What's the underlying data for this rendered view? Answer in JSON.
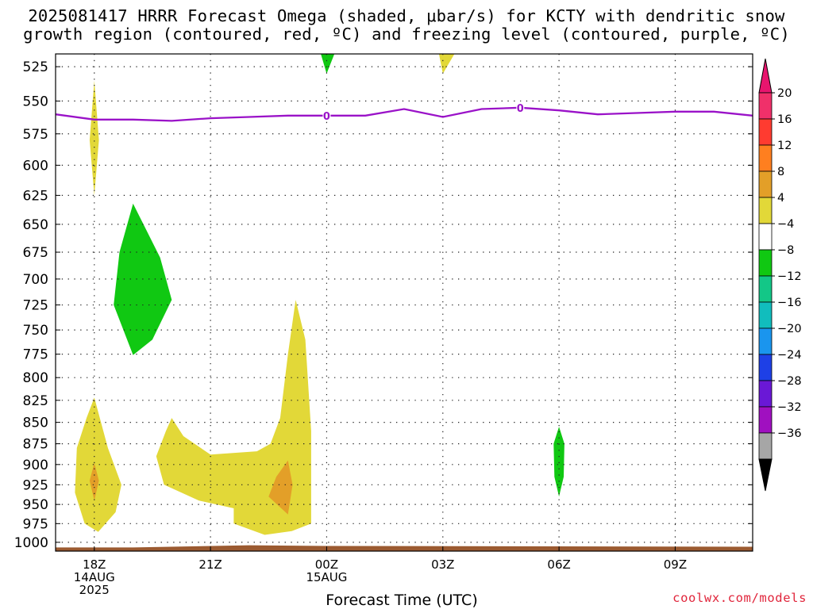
{
  "title_line1": "2025081417 HRRR Forecast Omega (shaded, μbar/s) for KCTY with dendritic snow",
  "title_line2": "growth region (contoured, red, ºC) and freezing level (contoured, purple, ºC)",
  "credit": "coolwx.com/models",
  "chart_data": {
    "type": "heatmap",
    "xlabel": "Forecast Time (UTC)",
    "ylabel": "",
    "x_ticks": [
      {
        "hour": 0,
        "lines": [
          "18Z",
          "14AUG",
          "2025"
        ]
      },
      {
        "hour": 3,
        "lines": [
          "21Z"
        ]
      },
      {
        "hour": 6,
        "lines": [
          "00Z",
          "15AUG"
        ]
      },
      {
        "hour": 9,
        "lines": [
          "03Z"
        ]
      },
      {
        "hour": 12,
        "lines": [
          "06Z"
        ]
      },
      {
        "hour": 15,
        "lines": [
          "09Z"
        ]
      }
    ],
    "xlim": [
      -1,
      17
    ],
    "y_ticks": [
      525,
      550,
      575,
      600,
      625,
      650,
      675,
      700,
      725,
      750,
      775,
      800,
      825,
      850,
      875,
      900,
      925,
      950,
      975,
      1000
    ],
    "ylim": [
      1012,
      516
    ],
    "y_scale": "log",
    "grid": true,
    "colorbar": {
      "labels": [
        "20",
        "16",
        "12",
        "8",
        "4",
        "−4",
        "−8",
        "−12",
        "−16",
        "−20",
        "−24",
        "−28",
        "−32",
        "−36"
      ],
      "colors": [
        "#f0306a",
        "#ff3b30",
        "#ff7f1f",
        "#e39f28",
        "#e2d838",
        "#ffffff",
        "#10c812",
        "#13c787",
        "#11bdbd",
        "#1a95ee",
        "#1e40e6",
        "#6a18d6",
        "#a010c0",
        "#a6a6a6"
      ],
      "top_color": "#e8156e",
      "bottom_color": "#000000"
    },
    "regions": [
      {
        "color": "#e2d838",
        "points": [
          [
            0.0,
            535
          ],
          [
            0.12,
            580
          ],
          [
            0.0,
            625
          ],
          [
            -0.12,
            580
          ]
        ]
      },
      {
        "color": "#e2d838",
        "points": [
          [
            0.0,
            822
          ],
          [
            0.35,
            880
          ],
          [
            0.7,
            925
          ],
          [
            0.55,
            960
          ],
          [
            0.1,
            986
          ],
          [
            -0.25,
            975
          ],
          [
            -0.5,
            935
          ],
          [
            -0.45,
            880
          ],
          [
            -0.2,
            845
          ]
        ]
      },
      {
        "color": "#e39f28",
        "points": [
          [
            0.0,
            898
          ],
          [
            0.12,
            920
          ],
          [
            0.0,
            945
          ],
          [
            -0.12,
            920
          ]
        ]
      },
      {
        "color": "#10c812",
        "points": [
          [
            1.0,
            632
          ],
          [
            1.7,
            680
          ],
          [
            2.0,
            720
          ],
          [
            1.5,
            760
          ],
          [
            1.0,
            776
          ],
          [
            0.5,
            725
          ],
          [
            0.65,
            675
          ]
        ]
      },
      {
        "color": "#e2d838",
        "points": [
          [
            2.0,
            845
          ],
          [
            2.3,
            866
          ],
          [
            3.0,
            888
          ],
          [
            4.2,
            884
          ],
          [
            4.55,
            875
          ],
          [
            4.8,
            845
          ],
          [
            5.0,
            775
          ],
          [
            5.2,
            720
          ],
          [
            5.45,
            760
          ],
          [
            5.6,
            860
          ],
          [
            5.6,
            975
          ],
          [
            5.1,
            985
          ],
          [
            4.4,
            990
          ],
          [
            3.6,
            975
          ],
          [
            3.6,
            955
          ],
          [
            2.7,
            945
          ],
          [
            1.8,
            925
          ],
          [
            1.6,
            890
          ],
          [
            1.85,
            860
          ]
        ]
      },
      {
        "color": "#e39f28",
        "points": [
          [
            5.0,
            895
          ],
          [
            5.12,
            925
          ],
          [
            5.0,
            963
          ],
          [
            4.5,
            940
          ],
          [
            4.7,
            915
          ]
        ]
      },
      {
        "color": "#10c812",
        "points": [
          [
            5.85,
            516
          ],
          [
            6.2,
            516
          ],
          [
            6.0,
            530
          ]
        ]
      },
      {
        "color": "#e2d838",
        "points": [
          [
            8.9,
            516
          ],
          [
            9.3,
            516
          ],
          [
            9.0,
            530
          ]
        ]
      },
      {
        "color": "#10c812",
        "points": [
          [
            12.0,
            855
          ],
          [
            12.14,
            875
          ],
          [
            12.12,
            915
          ],
          [
            12.0,
            940
          ],
          [
            11.88,
            915
          ],
          [
            11.86,
            875
          ]
        ]
      },
      {
        "color": "#9b5a30",
        "points": [
          [
            -1.0,
            1007
          ],
          [
            1.0,
            1007
          ],
          [
            4.0,
            1004
          ],
          [
            6.0,
            1005
          ],
          [
            17.0,
            1006
          ],
          [
            17.0,
            1012
          ],
          [
            -1.0,
            1012
          ]
        ]
      }
    ],
    "freezing_level": {
      "color": "#9a12c8",
      "points": [
        [
          -1.0,
          560
        ],
        [
          0.0,
          564
        ],
        [
          1.0,
          564
        ],
        [
          2.0,
          565
        ],
        [
          3.0,
          563
        ],
        [
          4.0,
          562
        ],
        [
          5.0,
          561
        ],
        [
          6.0,
          561
        ],
        [
          7.0,
          561
        ],
        [
          8.0,
          556
        ],
        [
          9.0,
          562
        ],
        [
          10.0,
          556
        ],
        [
          11.0,
          555
        ],
        [
          12.0,
          557
        ],
        [
          13.0,
          560
        ],
        [
          14.0,
          559
        ],
        [
          15.0,
          558
        ],
        [
          16.0,
          558
        ],
        [
          17.0,
          561
        ]
      ],
      "labels": [
        {
          "x": 6.0,
          "y": 561,
          "text": "0"
        },
        {
          "x": 11.0,
          "y": 555,
          "text": "0"
        }
      ]
    }
  }
}
